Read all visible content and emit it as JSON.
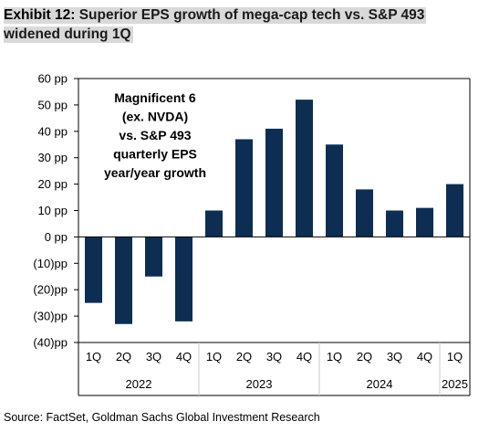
{
  "exhibit": {
    "label": "Exhibit 12:",
    "title": "Superior EPS growth of mega-cap tech vs. S&P 493 widened during 1Q"
  },
  "source": "Source: FactSet, Goldman Sachs Global Investment Research",
  "colors": {
    "bar": "#0d2d52",
    "title_highlight": "#d9d9d9",
    "axis": "#000000",
    "divider": "#c8c8c8"
  },
  "chart_data": {
    "type": "bar",
    "title": "",
    "xlabel": "",
    "ylabel": "",
    "annotation": [
      "Magnificent 6",
      "(ex. NVDA)",
      "vs. S&P 493",
      "quarterly EPS",
      "year/year growth"
    ],
    "categories": [
      "1Q",
      "2Q",
      "3Q",
      "4Q",
      "1Q",
      "2Q",
      "3Q",
      "4Q",
      "1Q",
      "2Q",
      "3Q",
      "4Q",
      "1Q"
    ],
    "groups": [
      {
        "label": "2022",
        "count": 4
      },
      {
        "label": "2023",
        "count": 4
      },
      {
        "label": "2024",
        "count": 4
      },
      {
        "label": "2025",
        "count": 1
      }
    ],
    "values": [
      -25,
      -33,
      -15,
      -32,
      10,
      37,
      41,
      52,
      35,
      18,
      10,
      11,
      20
    ],
    "ylim": [
      -40,
      60
    ],
    "yticks": [
      60,
      50,
      40,
      30,
      20,
      10,
      0,
      -10,
      -20,
      -30,
      -40
    ],
    "ytick_labels": [
      "60 pp",
      "50 pp",
      "40 pp",
      "30 pp",
      "20 pp",
      "10 pp",
      "0 pp",
      "(10)pp",
      "(20)pp",
      "(30)pp",
      "(40)pp"
    ],
    "grid": false,
    "legend": "none"
  }
}
